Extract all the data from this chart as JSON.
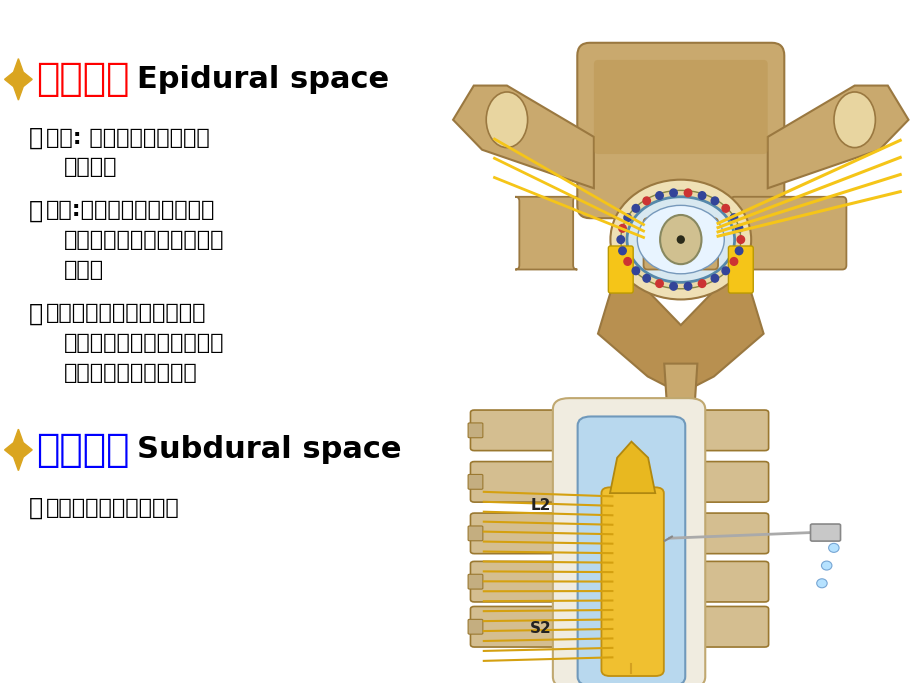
{
  "background_color": "#ffffff",
  "star_color": "#DAA520",
  "title1_chinese": "硬膜外隙",
  "title1_english": "Epidural space",
  "title1_color_cn": "#ff0000",
  "title1_color_en": "#000000",
  "title1_fontsize_cn": 28,
  "title1_fontsize_en": 22,
  "title2_chinese": "硬膜下隙",
  "title2_english": "Subdural space",
  "title2_color_cn": "#0000ff",
  "title2_color_en": "#000000",
  "title2_fontsize_cn": 28,
  "title2_fontsize_en": 22,
  "bullet_fontsize": 16,
  "bullet_color": "#000000",
  "bone_color": "#C8A96E",
  "bone_dark": "#9A7840",
  "nerve_yellow": "#F5C518",
  "dural_blue": "#A8C8E8",
  "needle_color": "#AAAAAA",
  "drop_color": "#AADDFF"
}
